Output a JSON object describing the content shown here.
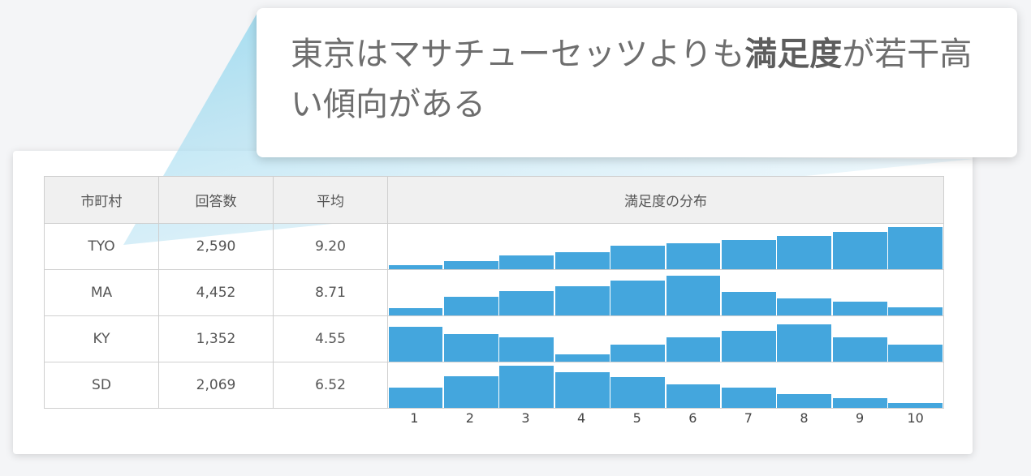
{
  "callout": {
    "prefix": "東京はマサチューセッツよりも",
    "emphasis": "満足度",
    "suffix": "が若干高い傾向がある"
  },
  "table": {
    "headers": [
      "市町村",
      "回答数",
      "平均",
      "満足度の分布"
    ],
    "rows": [
      {
        "name": "TYO",
        "count": "2,590",
        "mean": "9.20"
      },
      {
        "name": "MA",
        "count": "4,452",
        "mean": "8.71"
      },
      {
        "name": "KY",
        "count": "1,352",
        "mean": "4.55"
      },
      {
        "name": "SD",
        "count": "2,069",
        "mean": "6.52"
      }
    ]
  },
  "chart_data": {
    "type": "bar",
    "categories": [
      "1",
      "2",
      "3",
      "4",
      "5",
      "6",
      "7",
      "8",
      "9",
      "10"
    ],
    "series": [
      {
        "values": [
          0.1,
          0.2,
          0.33,
          0.4,
          0.55,
          0.62,
          0.7,
          0.78,
          0.88,
          1.0
        ]
      },
      {
        "values": [
          0.18,
          0.45,
          0.57,
          0.7,
          0.83,
          0.95,
          0.55,
          0.4,
          0.33,
          0.2
        ]
      },
      {
        "values": [
          0.82,
          0.65,
          0.57,
          0.17,
          0.4,
          0.57,
          0.73,
          0.88,
          0.57,
          0.4
        ]
      },
      {
        "values": [
          0.48,
          0.75,
          1.0,
          0.85,
          0.73,
          0.55,
          0.48,
          0.33,
          0.24,
          0.12
        ]
      }
    ],
    "colors": {
      "bar": "#44a6dd"
    }
  }
}
